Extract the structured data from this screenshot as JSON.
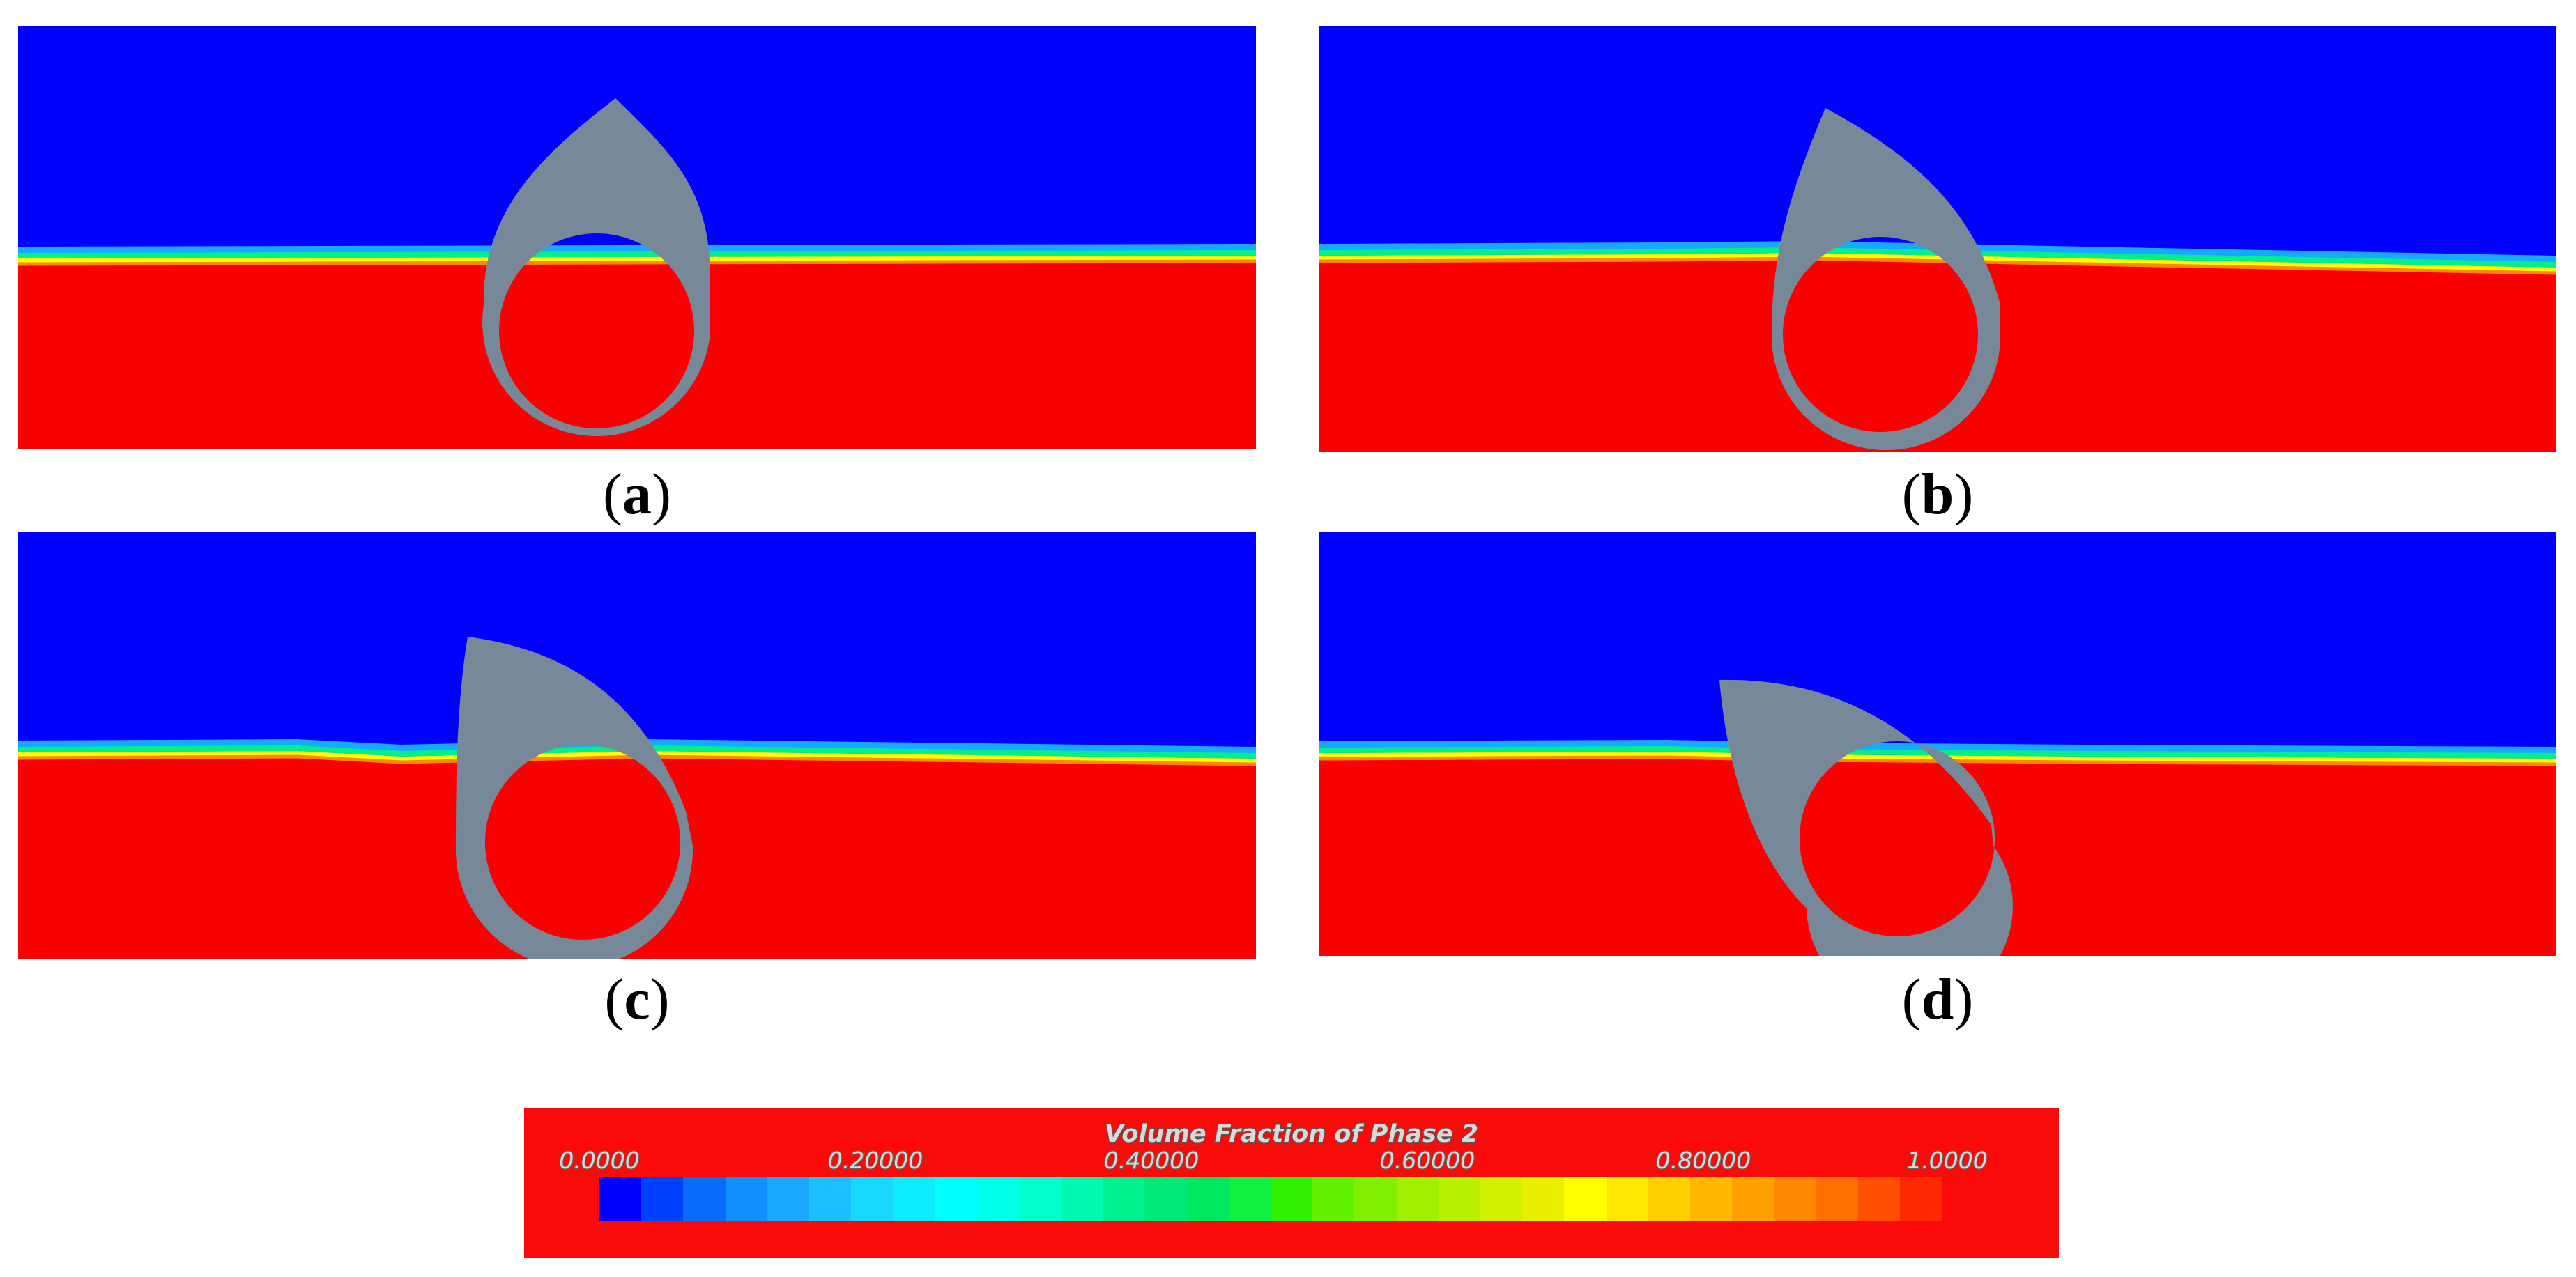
{
  "panels": [
    {
      "id": "a",
      "label_open": "(",
      "label_letter": "a",
      "label_close": ")"
    },
    {
      "id": "b",
      "label_open": "(",
      "label_letter": "b",
      "label_close": ")"
    },
    {
      "id": "c",
      "label_open": "(",
      "label_letter": "c",
      "label_close": ")"
    },
    {
      "id": "d",
      "label_open": "(",
      "label_letter": "d",
      "label_close": ")"
    }
  ],
  "colors": {
    "phase_low": "#0000ff",
    "phase_high": "#fb0000",
    "body": "#778899"
  },
  "legend": {
    "title": "Volume Fraction of Phase 2",
    "ticks": [
      "0.0000",
      "0.20000",
      "0.40000",
      "0.60000",
      "0.80000",
      "1.0000"
    ],
    "min": 0.0,
    "max": 1.0,
    "levels": 32,
    "swatches": [
      "#0000ff",
      "#0040ff",
      "#0a6cff",
      "#1090ff",
      "#1aa8ff",
      "#1cc0ff",
      "#18d8ff",
      "#10ecff",
      "#00ffff",
      "#00ffe8",
      "#00ffcc",
      "#00f8b0",
      "#00f090",
      "#00e878",
      "#00e860",
      "#10f040",
      "#30f000",
      "#60f000",
      "#80f000",
      "#a0f000",
      "#b8f000",
      "#d0f000",
      "#e8f000",
      "#ffff00",
      "#ffe800",
      "#ffd000",
      "#ffb800",
      "#ffa000",
      "#ff8800",
      "#ff7000",
      "#ff5000",
      "#ff2800"
    ]
  }
}
